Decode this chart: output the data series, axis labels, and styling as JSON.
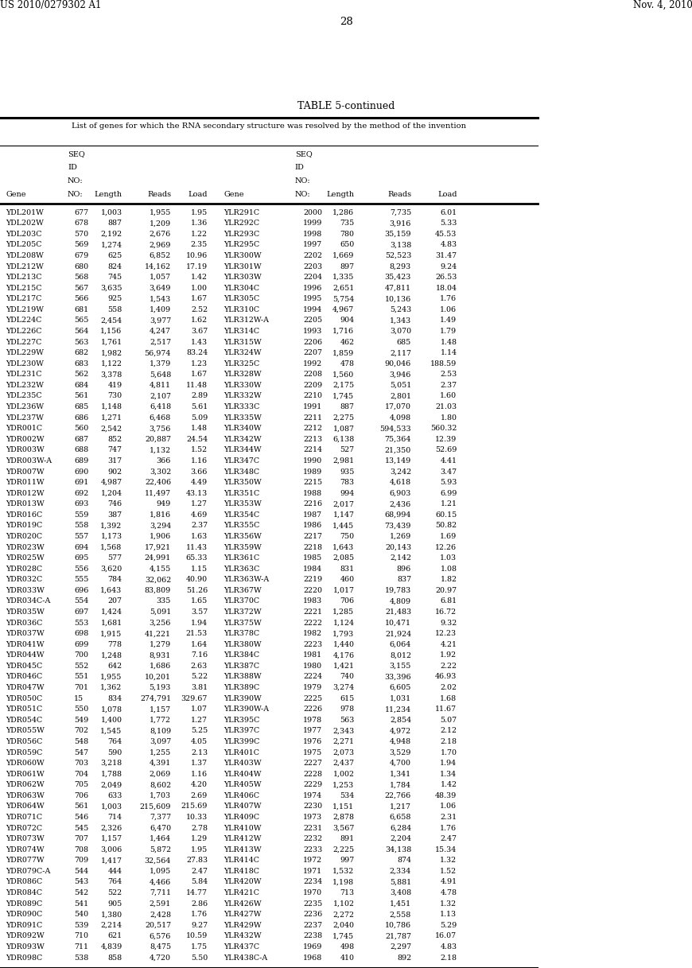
{
  "header_left": "US 2010/0279302 A1",
  "header_right": "Nov. 4, 2010",
  "page_number": "28",
  "table_title": "TABLE 5-continued",
  "table_subtitle": "List of genes for which the RNA secondary structure was resolved by the method of the invention",
  "rows": [
    [
      "YDL201W",
      "677",
      "1,003",
      "1,955",
      "1.95",
      "YLR291C",
      "2000",
      "1,286",
      "7,735",
      "6.01"
    ],
    [
      "YDL202W",
      "678",
      "887",
      "1,209",
      "1.36",
      "YLR292C",
      "1999",
      "735",
      "3,916",
      "5.33"
    ],
    [
      "YDL203C",
      "570",
      "2,192",
      "2,676",
      "1.22",
      "YLR293C",
      "1998",
      "780",
      "35,159",
      "45.53"
    ],
    [
      "YDL205C",
      "569",
      "1,274",
      "2,969",
      "2.35",
      "YLR295C",
      "1997",
      "650",
      "3,138",
      "4.83"
    ],
    [
      "YDL208W",
      "679",
      "625",
      "6,852",
      "10.96",
      "YLR300W",
      "2202",
      "1,669",
      "52,523",
      "31.47"
    ],
    [
      "YDL212W",
      "680",
      "824",
      "14,162",
      "17.19",
      "YLR301W",
      "2203",
      "897",
      "8,293",
      "9.24"
    ],
    [
      "YDL213C",
      "568",
      "745",
      "1,057",
      "1.42",
      "YLR303W",
      "2204",
      "1,335",
      "35,423",
      "26.53"
    ],
    [
      "YDL215C",
      "567",
      "3,635",
      "3,649",
      "1.00",
      "YLR304C",
      "1996",
      "2,651",
      "47,811",
      "18.04"
    ],
    [
      "YDL217C",
      "566",
      "925",
      "1,543",
      "1.67",
      "YLR305C",
      "1995",
      "5,754",
      "10,136",
      "1.76"
    ],
    [
      "YDL219W",
      "681",
      "558",
      "1,409",
      "2.52",
      "YLR310C",
      "1994",
      "4,967",
      "5,243",
      "1.06"
    ],
    [
      "YDL224C",
      "565",
      "2,454",
      "3,977",
      "1.62",
      "YLR312W-A",
      "2205",
      "904",
      "1,343",
      "1.49"
    ],
    [
      "YDL226C",
      "564",
      "1,156",
      "4,247",
      "3.67",
      "YLR314C",
      "1993",
      "1,716",
      "3,070",
      "1.79"
    ],
    [
      "YDL227C",
      "563",
      "1,761",
      "2,517",
      "1.43",
      "YLR315W",
      "2206",
      "462",
      "685",
      "1.48"
    ],
    [
      "YDL229W",
      "682",
      "1,982",
      "56,974",
      "83.24",
      "YLR324W",
      "2207",
      "1,859",
      "2,117",
      "1.14"
    ],
    [
      "YDL230W",
      "683",
      "1,122",
      "1,379",
      "1.23",
      "YLR325C",
      "1992",
      "478",
      "90,046",
      "188.59"
    ],
    [
      "YDL231C",
      "562",
      "3,378",
      "5,648",
      "1.67",
      "YLR328W",
      "2208",
      "1,560",
      "3,946",
      "2.53"
    ],
    [
      "YDL232W",
      "684",
      "419",
      "4,811",
      "11.48",
      "YLR330W",
      "2209",
      "2,175",
      "5,051",
      "2.37"
    ],
    [
      "YDL235C",
      "561",
      "730",
      "2,107",
      "2.89",
      "YLR332W",
      "2210",
      "1,745",
      "2,801",
      "1.60"
    ],
    [
      "YDL236W",
      "685",
      "1,148",
      "6,418",
      "5.61",
      "YLR333C",
      "1991",
      "887",
      "17,070",
      "21.03"
    ],
    [
      "YDL237W",
      "686",
      "1,271",
      "6,468",
      "5.09",
      "YLR335W",
      "2211",
      "2,275",
      "4,098",
      "1.80"
    ],
    [
      "YDR001C",
      "560",
      "2,542",
      "3,756",
      "1.48",
      "YLR340W",
      "2212",
      "1,087",
      "594,533",
      "560.32"
    ],
    [
      "YDR002W",
      "687",
      "852",
      "20,887",
      "24.54",
      "YLR342W",
      "2213",
      "6,138",
      "75,364",
      "12.39"
    ],
    [
      "YDR003W",
      "688",
      "747",
      "1,132",
      "1.52",
      "YLR344W",
      "2214",
      "527",
      "21,350",
      "52.69"
    ],
    [
      "YDR003W-A",
      "689",
      "317",
      "366",
      "1.16",
      "YLR347C",
      "1990",
      "2,981",
      "13,149",
      "4.41"
    ],
    [
      "YDR007W",
      "690",
      "902",
      "3,302",
      "3.66",
      "YLR348C",
      "1989",
      "935",
      "3,242",
      "3.47"
    ],
    [
      "YDR011W",
      "691",
      "4,987",
      "22,406",
      "4.49",
      "YLR350W",
      "2215",
      "783",
      "4,618",
      "5.93"
    ],
    [
      "YDR012W",
      "692",
      "1,204",
      "11,497",
      "43.13",
      "YLR351C",
      "1988",
      "994",
      "6,903",
      "6.99"
    ],
    [
      "YDR013W",
      "693",
      "746",
      "949",
      "1.27",
      "YLR353W",
      "2216",
      "2,017",
      "2,436",
      "1.21"
    ],
    [
      "YDR016C",
      "559",
      "387",
      "1,816",
      "4.69",
      "YLR354C",
      "1987",
      "1,147",
      "68,994",
      "60.15"
    ],
    [
      "YDR019C",
      "558",
      "1,392",
      "3,294",
      "2.37",
      "YLR355C",
      "1986",
      "1,445",
      "73,439",
      "50.82"
    ],
    [
      "YDR020C",
      "557",
      "1,173",
      "1,906",
      "1.63",
      "YLR356W",
      "2217",
      "750",
      "1,269",
      "1.69"
    ],
    [
      "YDR023W",
      "694",
      "1,568",
      "17,921",
      "11.43",
      "YLR359W",
      "2218",
      "1,643",
      "20,143",
      "12.26"
    ],
    [
      "YDR025W",
      "695",
      "577",
      "24,991",
      "65.33",
      "YLR361C",
      "1985",
      "2,085",
      "2,142",
      "1.03"
    ],
    [
      "YDR028C",
      "556",
      "3,620",
      "4,155",
      "1.15",
      "YLR363C",
      "1984",
      "831",
      "896",
      "1.08"
    ],
    [
      "YDR032C",
      "555",
      "784",
      "32,062",
      "40.90",
      "YLR363W-A",
      "2219",
      "460",
      "837",
      "1.82"
    ],
    [
      "YDR033W",
      "696",
      "1,643",
      "83,809",
      "51.26",
      "YLR367W",
      "2220",
      "1,017",
      "19,783",
      "20.97"
    ],
    [
      "YDR034C-A",
      "554",
      "207",
      "335",
      "1.65",
      "YLR370C",
      "1983",
      "706",
      "4,809",
      "6.81"
    ],
    [
      "YDR035W",
      "697",
      "1,424",
      "5,091",
      "3.57",
      "YLR372W",
      "2221",
      "1,285",
      "21,483",
      "16.72"
    ],
    [
      "YDR036C",
      "553",
      "1,681",
      "3,256",
      "1.94",
      "YLR375W",
      "2222",
      "1,124",
      "10,471",
      "9.32"
    ],
    [
      "YDR037W",
      "698",
      "1,915",
      "41,221",
      "21.53",
      "YLR378C",
      "1982",
      "1,793",
      "21,924",
      "12.23"
    ],
    [
      "YDR041W",
      "699",
      "778",
      "1,279",
      "1.64",
      "YLR380W",
      "2223",
      "1,440",
      "6,064",
      "4.21"
    ],
    [
      "YDR044W",
      "700",
      "1,248",
      "8,931",
      "7.16",
      "YLR384C",
      "1981",
      "4,176",
      "8,012",
      "1.92"
    ],
    [
      "YDR045C",
      "552",
      "642",
      "1,686",
      "2.63",
      "YLR387C",
      "1980",
      "1,421",
      "3,155",
      "2.22"
    ],
    [
      "YDR046C",
      "551",
      "1,955",
      "10,201",
      "5.22",
      "YLR388W",
      "2224",
      "740",
      "33,396",
      "46.93"
    ],
    [
      "YDR047W",
      "701",
      "1,362",
      "5,193",
      "3.81",
      "YLR389C",
      "1979",
      "3,274",
      "6,605",
      "2.02"
    ],
    [
      "YDR050C",
      "15",
      "834",
      "274,791",
      "329.67",
      "YLR390W",
      "2225",
      "615",
      "1,031",
      "1.68"
    ],
    [
      "YDR051C",
      "550",
      "1,078",
      "1,157",
      "1.07",
      "YLR390W-A",
      "2226",
      "978",
      "11,234",
      "11.67"
    ],
    [
      "YDR054C",
      "549",
      "1,400",
      "1,772",
      "1.27",
      "YLR395C",
      "1978",
      "563",
      "2,854",
      "5.07"
    ],
    [
      "YDR055W",
      "702",
      "1,545",
      "8,109",
      "5.25",
      "YLR397C",
      "1977",
      "2,343",
      "4,972",
      "2.12"
    ],
    [
      "YDR056C",
      "548",
      "764",
      "3,097",
      "4.05",
      "YLR399C",
      "1976",
      "2,271",
      "4,948",
      "2.18"
    ],
    [
      "YDR059C",
      "547",
      "590",
      "1,255",
      "2.13",
      "YLR401C",
      "1975",
      "2,073",
      "3,529",
      "1.70"
    ],
    [
      "YDR060W",
      "703",
      "3,218",
      "4,391",
      "1.37",
      "YLR403W",
      "2227",
      "2,437",
      "4,700",
      "1.94"
    ],
    [
      "YDR061W",
      "704",
      "1,788",
      "2,069",
      "1.16",
      "YLR404W",
      "2228",
      "1,002",
      "1,341",
      "1.34"
    ],
    [
      "YDR062W",
      "705",
      "2,049",
      "8,602",
      "4.20",
      "YLR405W",
      "2229",
      "1,253",
      "1,784",
      "1.42"
    ],
    [
      "YDR063W",
      "706",
      "633",
      "1,703",
      "2.69",
      "YLR406C",
      "1974",
      "534",
      "22,766",
      "48.39"
    ],
    [
      "YDR064W",
      "561",
      "1,003",
      "215,609",
      "215.69",
      "YLR407W",
      "2230",
      "1,151",
      "1,217",
      "1.06"
    ],
    [
      "YDR071C",
      "546",
      "714",
      "7,377",
      "10.33",
      "YLR409C",
      "1973",
      "2,878",
      "6,658",
      "2.31"
    ],
    [
      "YDR072C",
      "545",
      "2,326",
      "6,470",
      "2.78",
      "YLR410W",
      "2231",
      "3,567",
      "6,284",
      "1.76"
    ],
    [
      "YDR073W",
      "707",
      "1,157",
      "1,464",
      "1.29",
      "YLR412W",
      "2232",
      "891",
      "2,204",
      "2.47"
    ],
    [
      "YDR074W",
      "708",
      "3,006",
      "5,872",
      "1.95",
      "YLR413W",
      "2233",
      "2,225",
      "34,138",
      "15.34"
    ],
    [
      "YDR077W",
      "709",
      "1,417",
      "32,564",
      "27.83",
      "YLR414C",
      "1972",
      "997",
      "874",
      "1.32"
    ],
    [
      "YDR079C-A",
      "544",
      "444",
      "1,095",
      "2.47",
      "YLR418C",
      "1971",
      "1,532",
      "2,334",
      "1.52"
    ],
    [
      "YDR086C",
      "543",
      "764",
      "4,466",
      "5.84",
      "YLR420W",
      "2234",
      "1,198",
      "5,881",
      "4.91"
    ],
    [
      "YDR084C",
      "542",
      "522",
      "7,711",
      "14.77",
      "YLR421C",
      "1970",
      "713",
      "3,408",
      "4.78"
    ],
    [
      "YDR089C",
      "541",
      "905",
      "2,591",
      "2.86",
      "YLR426W",
      "2235",
      "1,102",
      "1,451",
      "1.32"
    ],
    [
      "YDR090C",
      "540",
      "1,380",
      "2,428",
      "1.76",
      "YLR427W",
      "2236",
      "2,272",
      "2,558",
      "1.13"
    ],
    [
      "YDR091C",
      "539",
      "2,214",
      "20,517",
      "9.27",
      "YLR429W",
      "2237",
      "2,040",
      "10,786",
      "5.29"
    ],
    [
      "YDR092W",
      "710",
      "621",
      "6,576",
      "10.59",
      "YLR432W",
      "2238",
      "1,745",
      "21,787",
      "16.07"
    ],
    [
      "YDR093W",
      "711",
      "4,839",
      "8,475",
      "1.75",
      "YLR437C",
      "1969",
      "498",
      "2,297",
      "4.83"
    ],
    [
      "YDR098C",
      "538",
      "858",
      "4,720",
      "5.50",
      "YLR438C-A",
      "1968",
      "410",
      "892",
      "2.18"
    ]
  ],
  "bg_color": "#ffffff",
  "text_color": "#000000",
  "font_size_header": 8.5,
  "font_size_page": 9.5,
  "font_size_title": 9.0,
  "font_size_subtitle": 7.2,
  "font_size_col_header": 7.0,
  "font_size_data": 6.8
}
